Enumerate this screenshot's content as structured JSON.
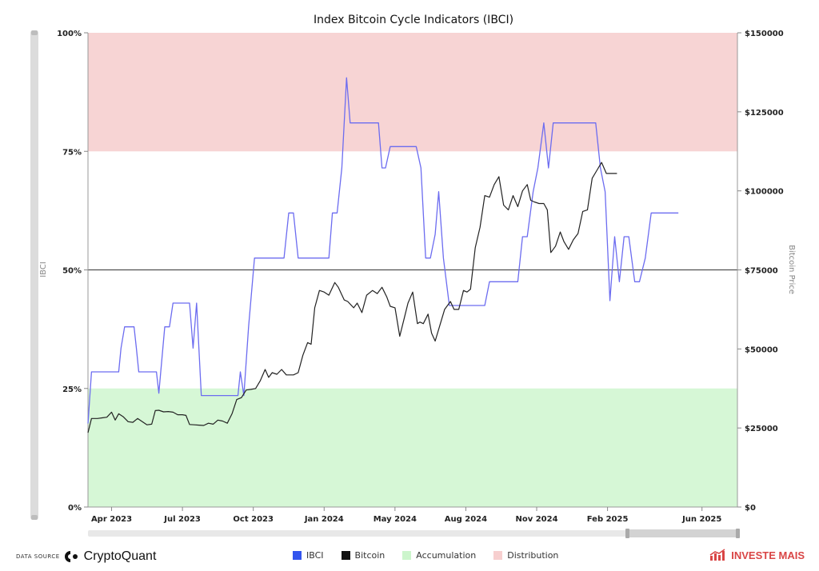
{
  "chart_data": {
    "type": "line",
    "title": "Index Bitcoin Cycle Indicators (IBCI)",
    "y_left_label": "IBCI",
    "y_right_label": "Bitcoin Price",
    "y_left_ticks": [
      "100%",
      "75%",
      "50%",
      "25%",
      "0%"
    ],
    "y_right_ticks": [
      "$150000",
      "$125000",
      "$100000",
      "$75000",
      "$50000",
      "$25000",
      "$0"
    ],
    "ylim_left": [
      0,
      100
    ],
    "ylim_right": [
      0,
      150000
    ],
    "x_range": [
      0,
      27.5
    ],
    "x_ticks": [
      {
        "x": 1,
        "label": "Apr 2023"
      },
      {
        "x": 4,
        "label": "Jul 2023"
      },
      {
        "x": 7,
        "label": "Oct 2023"
      },
      {
        "x": 10,
        "label": "Jan 2024"
      },
      {
        "x": 13,
        "label": "May 2024"
      },
      {
        "x": 16,
        "label": "Aug 2024"
      },
      {
        "x": 19,
        "label": "Nov 2024"
      },
      {
        "x": 22,
        "label": "Feb 2025"
      },
      {
        "x": 26,
        "label": "Jun 2025"
      }
    ],
    "bands": [
      {
        "name": "Distribution",
        "from": 75,
        "to": 100,
        "color": "#f7d4d4"
      },
      {
        "name": "Accumulation",
        "from": 0,
        "to": 25,
        "color": "#d6f7d6"
      }
    ],
    "reference_line": 50,
    "series": [
      {
        "name": "IBCI",
        "axis": "left",
        "color": "#6c6cf0",
        "points": [
          [
            0.0,
            17.6
          ],
          [
            0.15,
            28.5
          ],
          [
            0.5,
            28.5
          ],
          [
            1.0,
            28.5
          ],
          [
            1.3,
            28.5
          ],
          [
            1.4,
            33.5
          ],
          [
            1.55,
            38.0
          ],
          [
            1.95,
            38.0
          ],
          [
            2.05,
            33.5
          ],
          [
            2.15,
            28.5
          ],
          [
            2.9,
            28.5
          ],
          [
            3.0,
            24.0
          ],
          [
            3.1,
            29.5
          ],
          [
            3.25,
            38.0
          ],
          [
            3.45,
            38.0
          ],
          [
            3.6,
            43.0
          ],
          [
            4.3,
            43.0
          ],
          [
            4.45,
            33.5
          ],
          [
            4.6,
            43.0
          ],
          [
            4.8,
            23.5
          ],
          [
            6.35,
            23.5
          ],
          [
            6.45,
            28.5
          ],
          [
            6.6,
            23.5
          ],
          [
            6.8,
            38.0
          ],
          [
            7.05,
            52.5
          ],
          [
            8.0,
            52.5
          ],
          [
            8.3,
            52.5
          ],
          [
            8.5,
            62.0
          ],
          [
            8.7,
            62.0
          ],
          [
            8.9,
            52.5
          ],
          [
            10.0,
            52.5
          ],
          [
            10.2,
            52.5
          ],
          [
            10.35,
            62.0
          ],
          [
            10.55,
            62.0
          ],
          [
            10.75,
            71.5
          ],
          [
            10.95,
            90.5
          ],
          [
            11.1,
            81.0
          ],
          [
            12.3,
            81.0
          ],
          [
            12.45,
            71.5
          ],
          [
            12.6,
            71.5
          ],
          [
            12.8,
            76.0
          ],
          [
            13.9,
            76.0
          ],
          [
            14.1,
            71.5
          ],
          [
            14.3,
            52.5
          ],
          [
            14.5,
            52.5
          ],
          [
            14.7,
            57.5
          ],
          [
            14.85,
            66.5
          ],
          [
            15.05,
            52.5
          ],
          [
            15.3,
            42.5
          ],
          [
            16.5,
            42.5
          ],
          [
            16.8,
            42.5
          ],
          [
            17.0,
            47.5
          ],
          [
            18.2,
            47.5
          ],
          [
            18.4,
            57.0
          ],
          [
            18.6,
            57.0
          ],
          [
            18.85,
            66.5
          ],
          [
            19.05,
            71.5
          ],
          [
            19.3,
            81.0
          ],
          [
            19.5,
            71.5
          ],
          [
            19.7,
            81.0
          ],
          [
            21.5,
            81.0
          ],
          [
            21.7,
            71.5
          ],
          [
            21.9,
            66.5
          ],
          [
            22.1,
            43.5
          ],
          [
            22.3,
            57.0
          ],
          [
            22.5,
            47.5
          ],
          [
            22.7,
            57.0
          ],
          [
            22.9,
            57.0
          ],
          [
            23.15,
            47.5
          ],
          [
            23.35,
            47.5
          ],
          [
            23.6,
            52.5
          ],
          [
            23.85,
            62.0
          ],
          [
            24.5,
            62.0
          ],
          [
            25.0,
            62.0
          ]
        ]
      },
      {
        "name": "Bitcoin",
        "axis": "right",
        "color": "#222222",
        "points": [
          [
            0.0,
            23500
          ],
          [
            0.15,
            28000
          ],
          [
            0.4,
            28000
          ],
          [
            0.6,
            28200
          ],
          [
            0.8,
            28400
          ],
          [
            1.0,
            30000
          ],
          [
            1.15,
            27500
          ],
          [
            1.3,
            29500
          ],
          [
            1.5,
            28500
          ],
          [
            1.7,
            27000
          ],
          [
            1.9,
            26800
          ],
          [
            2.1,
            28000
          ],
          [
            2.3,
            27000
          ],
          [
            2.5,
            26000
          ],
          [
            2.7,
            26200
          ],
          [
            2.85,
            30500
          ],
          [
            3.0,
            30600
          ],
          [
            3.2,
            30100
          ],
          [
            3.4,
            30200
          ],
          [
            3.6,
            30000
          ],
          [
            3.8,
            29200
          ],
          [
            4.0,
            29200
          ],
          [
            4.15,
            29000
          ],
          [
            4.3,
            26100
          ],
          [
            4.5,
            26000
          ],
          [
            4.7,
            25900
          ],
          [
            4.9,
            25800
          ],
          [
            5.1,
            26500
          ],
          [
            5.3,
            26200
          ],
          [
            5.5,
            27500
          ],
          [
            5.7,
            27200
          ],
          [
            5.9,
            26500
          ],
          [
            6.1,
            29500
          ],
          [
            6.3,
            34000
          ],
          [
            6.5,
            34600
          ],
          [
            6.7,
            37000
          ],
          [
            6.9,
            37200
          ],
          [
            7.1,
            37500
          ],
          [
            7.3,
            40000
          ],
          [
            7.5,
            43500
          ],
          [
            7.65,
            41000
          ],
          [
            7.8,
            42500
          ],
          [
            8.0,
            42000
          ],
          [
            8.2,
            43500
          ],
          [
            8.4,
            41800
          ],
          [
            8.7,
            41800
          ],
          [
            8.9,
            42500
          ],
          [
            9.1,
            48000
          ],
          [
            9.3,
            52000
          ],
          [
            9.45,
            51500
          ],
          [
            9.6,
            63000
          ],
          [
            9.8,
            68500
          ],
          [
            10.0,
            68000
          ],
          [
            10.2,
            67000
          ],
          [
            10.45,
            71000
          ],
          [
            10.6,
            69500
          ],
          [
            10.85,
            65500
          ],
          [
            11.0,
            65000
          ],
          [
            11.25,
            63000
          ],
          [
            11.4,
            64500
          ],
          [
            11.6,
            61500
          ],
          [
            11.8,
            67000
          ],
          [
            12.05,
            68500
          ],
          [
            12.25,
            67500
          ],
          [
            12.45,
            69500
          ],
          [
            12.65,
            66500
          ],
          [
            12.8,
            63500
          ],
          [
            13.0,
            63000
          ],
          [
            13.2,
            54000
          ],
          [
            13.4,
            60000
          ],
          [
            13.55,
            64500
          ],
          [
            13.75,
            68000
          ],
          [
            13.95,
            58000
          ],
          [
            14.05,
            58500
          ],
          [
            14.2,
            58000
          ],
          [
            14.4,
            61000
          ],
          [
            14.55,
            55000
          ],
          [
            14.7,
            52500
          ],
          [
            14.9,
            57500
          ],
          [
            15.1,
            62500
          ],
          [
            15.35,
            65000
          ],
          [
            15.5,
            62500
          ],
          [
            15.7,
            62500
          ],
          [
            15.9,
            68500
          ],
          [
            16.05,
            68000
          ],
          [
            16.2,
            68900
          ],
          [
            16.4,
            82000
          ],
          [
            16.6,
            88500
          ],
          [
            16.8,
            98500
          ],
          [
            17.0,
            98000
          ],
          [
            17.2,
            102000
          ],
          [
            17.4,
            104500
          ],
          [
            17.6,
            95500
          ],
          [
            17.8,
            94000
          ],
          [
            18.0,
            98500
          ],
          [
            18.2,
            95000
          ],
          [
            18.4,
            100000
          ],
          [
            18.6,
            102000
          ],
          [
            18.75,
            97000
          ],
          [
            18.9,
            96500
          ],
          [
            19.1,
            96000
          ],
          [
            19.3,
            96000
          ],
          [
            19.45,
            94000
          ],
          [
            19.6,
            80500
          ],
          [
            19.8,
            82500
          ],
          [
            20.0,
            87000
          ],
          [
            20.15,
            84000
          ],
          [
            20.35,
            81500
          ],
          [
            20.55,
            84500
          ],
          [
            20.75,
            86500
          ],
          [
            20.95,
            93500
          ],
          [
            21.15,
            94000
          ],
          [
            21.35,
            104000
          ],
          [
            21.55,
            106500
          ],
          [
            21.75,
            109000
          ],
          [
            21.95,
            105500
          ],
          [
            22.15,
            105500
          ],
          [
            22.4,
            105500
          ]
        ]
      }
    ]
  },
  "legend": {
    "items": [
      {
        "label": "IBCI",
        "color": "#3355ee"
      },
      {
        "label": "Bitcoin",
        "color": "#111111"
      },
      {
        "label": "Accumulation",
        "color": "#ccf5cc"
      },
      {
        "label": "Distribution",
        "color": "#f7cfcf"
      }
    ]
  },
  "footer": {
    "data_source_label": "DATA SOURCE",
    "source_name": "CryptoQuant",
    "brand_name": "INVESTE MAIS"
  }
}
